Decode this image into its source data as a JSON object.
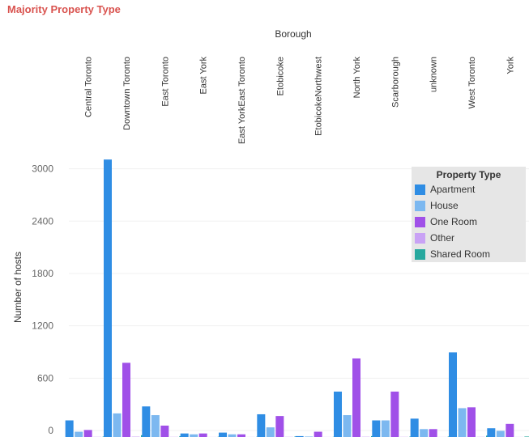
{
  "chart_data": {
    "type": "bar",
    "title": "Majority Property Type",
    "column_header": "Borough",
    "ylabel": "Number of hosts",
    "ylim": [
      0,
      3200
    ],
    "yticks": [
      0,
      600,
      1200,
      1800,
      2400,
      3000
    ],
    "categories": [
      "Central Toronto",
      "Downtown Toronto",
      "East Toronto",
      "East York",
      "East YorkEast Toronto",
      "Etobicoke",
      "EtobicokeNorthwest",
      "North York",
      "Scarborough",
      "unknown",
      "West Toronto",
      "York"
    ],
    "series": [
      {
        "name": "Apartment",
        "color": "#2f8de4",
        "values": [
          190,
          3180,
          350,
          40,
          50,
          260,
          10,
          520,
          190,
          210,
          970,
          100
        ]
      },
      {
        "name": "House",
        "color": "#7cb8f0",
        "values": [
          60,
          270,
          250,
          30,
          30,
          110,
          5,
          250,
          190,
          90,
          330,
          70
        ]
      },
      {
        "name": "One Room",
        "color": "#a050e8",
        "values": [
          80,
          850,
          130,
          40,
          30,
          240,
          60,
          900,
          520,
          90,
          340,
          150
        ]
      },
      {
        "name": "Other",
        "color": "#c9a2f5",
        "values": [
          2,
          4,
          2,
          1,
          1,
          2,
          1,
          3,
          2,
          1,
          2,
          1
        ]
      },
      {
        "name": "Shared Room",
        "color": "#27a89e",
        "values": [
          5,
          20,
          10,
          3,
          2,
          5,
          2,
          10,
          5,
          5,
          15,
          5
        ]
      }
    ],
    "legend_title": "Property Type",
    "legend_position": "right",
    "grid": true
  }
}
